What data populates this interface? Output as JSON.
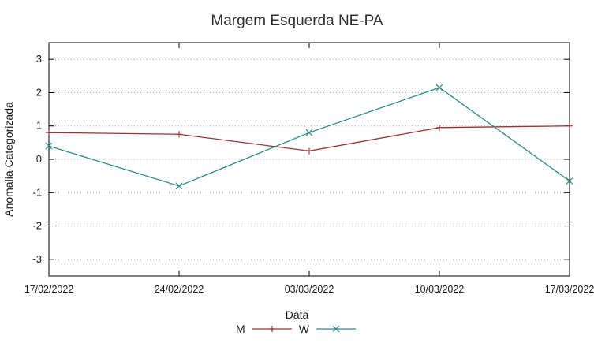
{
  "title": "Margem Esquerda NE-PA",
  "chart_data": {
    "type": "line",
    "title": "Margem Esquerda NE-PA",
    "xlabel": "Data",
    "ylabel": "Anomalia Categorizada",
    "x": [
      "17/02/2022",
      "24/02/2022",
      "03/03/2022",
      "10/03/2022",
      "17/03/2022"
    ],
    "series": [
      {
        "name": "M",
        "color": "#a03232",
        "marker": "plus",
        "values": [
          0.8,
          0.75,
          0.25,
          0.95,
          1.0
        ]
      },
      {
        "name": "W",
        "color": "#2e8b8b",
        "marker": "x",
        "values": [
          0.4,
          -0.8,
          0.8,
          2.15,
          -0.65
        ]
      }
    ],
    "ylim": [
      -3.5,
      3.5
    ],
    "yticks": [
      -3,
      -2,
      -1,
      0,
      1,
      2,
      3
    ],
    "grid": "horizontal-dotted",
    "legend_position": "bottom"
  },
  "colors": {
    "border": "#000000",
    "grid": "#9a9a9a",
    "text": "#1a1a1a"
  }
}
